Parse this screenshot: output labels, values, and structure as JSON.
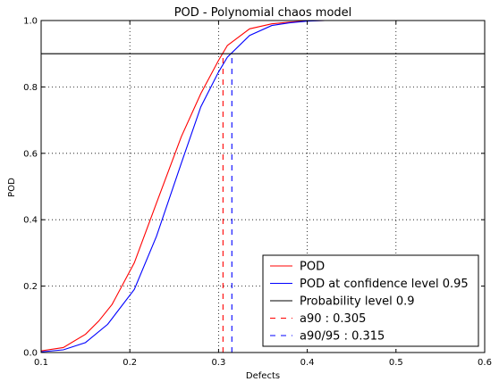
{
  "chart_data": {
    "type": "line",
    "title": "POD - Polynomial chaos model",
    "xlabel": "Defects",
    "ylabel": "POD",
    "xlim": [
      0.1,
      0.6
    ],
    "ylim": [
      0.0,
      1.0
    ],
    "xticks": [
      "0.1",
      "0.2",
      "0.3",
      "0.4",
      "0.5",
      "0.6"
    ],
    "yticks": [
      "0.0",
      "0.2",
      "0.4",
      "0.6",
      "0.8",
      "1.0"
    ],
    "grid": true,
    "legend_position": "bottom-right",
    "series": [
      {
        "name": "POD",
        "color": "#ff0000",
        "style": "solid",
        "x": [
          0.1,
          0.125,
          0.15,
          0.165,
          0.18,
          0.205,
          0.23,
          0.258,
          0.28,
          0.3,
          0.31,
          0.335,
          0.36,
          0.38,
          0.4,
          0.42,
          0.45,
          0.6
        ],
        "y": [
          0.005,
          0.015,
          0.055,
          0.095,
          0.145,
          0.27,
          0.45,
          0.65,
          0.78,
          0.88,
          0.925,
          0.975,
          0.99,
          0.995,
          0.999,
          1.0,
          1.0,
          1.0
        ]
      },
      {
        "name": "POD at confidence level 0.95",
        "color": "#0000ff",
        "style": "solid",
        "x": [
          0.1,
          0.125,
          0.15,
          0.175,
          0.205,
          0.23,
          0.258,
          0.28,
          0.3,
          0.31,
          0.335,
          0.36,
          0.38,
          0.4,
          0.42,
          0.45,
          0.6
        ],
        "y": [
          0.002,
          0.008,
          0.03,
          0.085,
          0.19,
          0.35,
          0.57,
          0.74,
          0.845,
          0.89,
          0.955,
          0.985,
          0.993,
          0.998,
          1.0,
          1.0,
          1.0
        ]
      },
      {
        "name": "Probability level 0.9",
        "color": "#000000",
        "style": "solid",
        "x": [
          0.1,
          0.6
        ],
        "y": [
          0.9,
          0.9
        ]
      },
      {
        "name": "a90 : 0.305",
        "color": "#ff0000",
        "style": "dashed",
        "x": [
          0.305,
          0.305
        ],
        "y": [
          0.0,
          0.9
        ]
      },
      {
        "name": "a90/95 : 0.315",
        "color": "#0000ff",
        "style": "dashed",
        "x": [
          0.315,
          0.315
        ],
        "y": [
          0.0,
          0.9
        ]
      }
    ]
  }
}
